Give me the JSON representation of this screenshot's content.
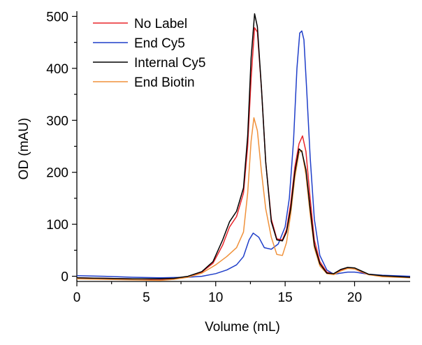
{
  "chart_data": {
    "type": "line",
    "title": "",
    "xlabel": "Volume (mL)",
    "ylabel": "OD (mAU)",
    "xlim": [
      0,
      24
    ],
    "ylim": [
      -10,
      510
    ],
    "xticks": [
      0,
      5,
      10,
      15,
      20
    ],
    "yticks": [
      0,
      100,
      200,
      300,
      400,
      500
    ],
    "legend_position": "top-left",
    "series": [
      {
        "name": "No Label",
        "color": "#e8252a",
        "points": [
          [
            0,
            -3
          ],
          [
            2,
            -4
          ],
          [
            4,
            -5
          ],
          [
            6,
            -6
          ],
          [
            7,
            -5
          ],
          [
            8,
            -1
          ],
          [
            9,
            8
          ],
          [
            9.8,
            25
          ],
          [
            10.5,
            60
          ],
          [
            11,
            95
          ],
          [
            11.5,
            115
          ],
          [
            12,
            160
          ],
          [
            12.3,
            250
          ],
          [
            12.55,
            380
          ],
          [
            12.8,
            478
          ],
          [
            13,
            470
          ],
          [
            13.3,
            360
          ],
          [
            13.6,
            220
          ],
          [
            14,
            110
          ],
          [
            14.4,
            72
          ],
          [
            14.8,
            70
          ],
          [
            15.1,
            90
          ],
          [
            15.4,
            140
          ],
          [
            15.7,
            210
          ],
          [
            16,
            255
          ],
          [
            16.25,
            270
          ],
          [
            16.5,
            240
          ],
          [
            16.8,
            150
          ],
          [
            17.1,
            70
          ],
          [
            17.5,
            28
          ],
          [
            18,
            8
          ],
          [
            18.5,
            4
          ],
          [
            19,
            12
          ],
          [
            19.5,
            16
          ],
          [
            20,
            14
          ],
          [
            20.5,
            8
          ],
          [
            21,
            3
          ],
          [
            22,
            0
          ],
          [
            24,
            -2
          ]
        ]
      },
      {
        "name": "End Cy5",
        "color": "#1f3ec9",
        "points": [
          [
            0,
            1
          ],
          [
            2,
            0
          ],
          [
            4,
            -2
          ],
          [
            6,
            -3
          ],
          [
            8,
            -2
          ],
          [
            9,
            0
          ],
          [
            10,
            5
          ],
          [
            10.8,
            12
          ],
          [
            11.5,
            22
          ],
          [
            12,
            38
          ],
          [
            12.4,
            70
          ],
          [
            12.7,
            83
          ],
          [
            13.1,
            75
          ],
          [
            13.5,
            55
          ],
          [
            14,
            52
          ],
          [
            14.5,
            62
          ],
          [
            15,
            95
          ],
          [
            15.3,
            150
          ],
          [
            15.6,
            260
          ],
          [
            15.85,
            400
          ],
          [
            16.05,
            468
          ],
          [
            16.2,
            472
          ],
          [
            16.35,
            455
          ],
          [
            16.55,
            360
          ],
          [
            16.8,
            230
          ],
          [
            17.1,
            110
          ],
          [
            17.5,
            40
          ],
          [
            18,
            12
          ],
          [
            18.5,
            4
          ],
          [
            19,
            6
          ],
          [
            19.5,
            8
          ],
          [
            20,
            8
          ],
          [
            20.5,
            6
          ],
          [
            21,
            4
          ],
          [
            22,
            2
          ],
          [
            24,
            0
          ]
        ]
      },
      {
        "name": "Internal Cy5",
        "color": "#000000",
        "points": [
          [
            0,
            -3
          ],
          [
            2,
            -4
          ],
          [
            4,
            -5
          ],
          [
            6,
            -5
          ],
          [
            7,
            -4
          ],
          [
            8,
            0
          ],
          [
            9,
            9
          ],
          [
            9.8,
            28
          ],
          [
            10.5,
            70
          ],
          [
            11,
            105
          ],
          [
            11.5,
            125
          ],
          [
            12,
            170
          ],
          [
            12.3,
            270
          ],
          [
            12.55,
            420
          ],
          [
            12.8,
            505
          ],
          [
            13,
            480
          ],
          [
            13.3,
            360
          ],
          [
            13.6,
            220
          ],
          [
            14,
            105
          ],
          [
            14.4,
            70
          ],
          [
            14.8,
            68
          ],
          [
            15.1,
            85
          ],
          [
            15.4,
            130
          ],
          [
            15.7,
            200
          ],
          [
            16,
            245
          ],
          [
            16.2,
            240
          ],
          [
            16.5,
            205
          ],
          [
            16.8,
            130
          ],
          [
            17.1,
            60
          ],
          [
            17.5,
            24
          ],
          [
            18,
            6
          ],
          [
            18.5,
            5
          ],
          [
            19,
            13
          ],
          [
            19.5,
            17
          ],
          [
            20,
            16
          ],
          [
            20.5,
            10
          ],
          [
            21,
            4
          ],
          [
            22,
            1
          ],
          [
            24,
            -2
          ]
        ]
      },
      {
        "name": "End Biotin",
        "color": "#f0913a",
        "points": [
          [
            0,
            -5
          ],
          [
            2,
            -6
          ],
          [
            4,
            -7
          ],
          [
            6,
            -8
          ],
          [
            7,
            -6
          ],
          [
            8,
            -2
          ],
          [
            9,
            6
          ],
          [
            10,
            22
          ],
          [
            10.8,
            38
          ],
          [
            11.5,
            55
          ],
          [
            12,
            85
          ],
          [
            12.3,
            160
          ],
          [
            12.55,
            260
          ],
          [
            12.75,
            305
          ],
          [
            13,
            280
          ],
          [
            13.3,
            200
          ],
          [
            13.6,
            130
          ],
          [
            14,
            75
          ],
          [
            14.4,
            42
          ],
          [
            14.8,
            40
          ],
          [
            15.1,
            65
          ],
          [
            15.4,
            120
          ],
          [
            15.7,
            190
          ],
          [
            16,
            238
          ],
          [
            16.2,
            242
          ],
          [
            16.5,
            195
          ],
          [
            16.8,
            120
          ],
          [
            17.1,
            55
          ],
          [
            17.5,
            20
          ],
          [
            18,
            5
          ],
          [
            18.5,
            3
          ],
          [
            19,
            10
          ],
          [
            19.5,
            15
          ],
          [
            20,
            14
          ],
          [
            20.5,
            9
          ],
          [
            21,
            3
          ],
          [
            22,
            -1
          ],
          [
            24,
            -3
          ]
        ]
      }
    ]
  }
}
